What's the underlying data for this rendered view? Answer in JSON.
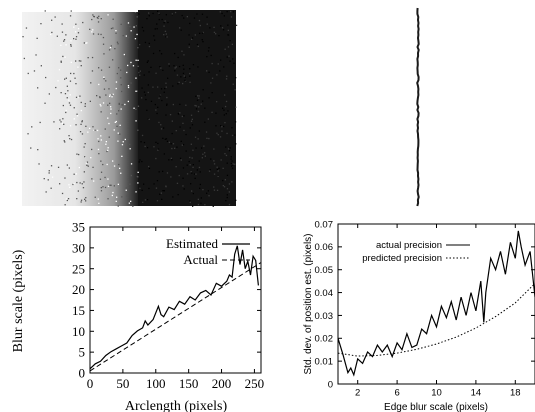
{
  "images": {
    "blur_ramp": {
      "dark_color": "#141414",
      "light_color": "#f2f2f2"
    },
    "edge_line": {
      "color": "#1a1a1a"
    }
  },
  "chart_data": [
    {
      "type": "line",
      "title": "",
      "xlabel": "Arclength (pixels)",
      "ylabel": "Blur scale (pixels)",
      "xlim": [
        0,
        260
      ],
      "ylim": [
        0,
        35
      ],
      "xticks": [
        "0",
        "50",
        "100",
        "150",
        "200",
        "250"
      ],
      "yticks": [
        "0",
        "5",
        "10",
        "15",
        "20",
        "25",
        "30",
        "35"
      ],
      "grid": false,
      "legend_position": "top-right",
      "series": [
        {
          "name": "Estimated",
          "style": "solid",
          "x": [
            0,
            8,
            16,
            24,
            32,
            40,
            48,
            56,
            64,
            72,
            80,
            84,
            88,
            96,
            104,
            108,
            112,
            120,
            128,
            136,
            144,
            152,
            160,
            168,
            176,
            184,
            192,
            200,
            208,
            212,
            216,
            220,
            224,
            228,
            232,
            236,
            240,
            244,
            248,
            252,
            256
          ],
          "values": [
            1.0,
            2.2,
            2.8,
            4.2,
            5.1,
            5.8,
            6.5,
            7.2,
            9.0,
            10.1,
            10.8,
            12.5,
            11.5,
            12.8,
            16.0,
            14.0,
            13.5,
            15.8,
            15.2,
            17.2,
            16.5,
            18.3,
            17.5,
            19.2,
            19.8,
            18.7,
            21.5,
            20.8,
            22.0,
            23.5,
            23.0,
            28.5,
            30.5,
            26.0,
            29.5,
            25.0,
            26.8,
            23.5,
            28.0,
            27.0,
            21.0
          ]
        },
        {
          "name": "Actual",
          "style": "dashed",
          "x": [
            0,
            260
          ],
          "values": [
            0.5,
            26.5
          ]
        }
      ]
    },
    {
      "type": "line",
      "title": "",
      "xlabel": "Edge blur scale (pixels)",
      "ylabel": "Std. dev. of position est. (pixels)",
      "xlim": [
        0,
        20
      ],
      "ylim": [
        0,
        0.07
      ],
      "xticks": [
        "2",
        "6",
        "10",
        "14",
        "18"
      ],
      "yticks": [
        "0",
        "0.01",
        "0.02",
        "0.03",
        "0.04",
        "0.05",
        "0.06",
        "0.07"
      ],
      "grid": false,
      "legend_position": "top-left",
      "series": [
        {
          "name": "actual precision",
          "style": "solid",
          "x": [
            0.0,
            0.5,
            1.0,
            1.3,
            1.6,
            2.0,
            2.5,
            3.0,
            3.5,
            4.0,
            4.5,
            5.0,
            5.5,
            6.0,
            6.5,
            7.0,
            7.5,
            8.0,
            8.5,
            9.0,
            9.5,
            10.0,
            10.5,
            11.0,
            11.5,
            12.0,
            12.5,
            13.0,
            13.5,
            14.0,
            14.5,
            14.8,
            15.0,
            15.5,
            16.0,
            16.5,
            17.0,
            17.5,
            18.0,
            18.3,
            18.6,
            19.0,
            19.5,
            20.0
          ],
          "values": [
            0.02,
            0.013,
            0.005,
            0.007,
            0.004,
            0.011,
            0.009,
            0.014,
            0.012,
            0.017,
            0.014,
            0.017,
            0.012,
            0.018,
            0.015,
            0.022,
            0.016,
            0.017,
            0.024,
            0.022,
            0.03,
            0.025,
            0.034,
            0.029,
            0.036,
            0.028,
            0.038,
            0.03,
            0.04,
            0.032,
            0.045,
            0.027,
            0.04,
            0.055,
            0.05,
            0.058,
            0.048,
            0.062,
            0.055,
            0.067,
            0.06,
            0.052,
            0.058,
            0.038
          ]
        },
        {
          "name": "predicted precision",
          "style": "dotted",
          "x": [
            0,
            2,
            4,
            6,
            8,
            10,
            12,
            14,
            16,
            18,
            20
          ],
          "values": [
            0.0135,
            0.0122,
            0.0125,
            0.0135,
            0.0152,
            0.0175,
            0.0205,
            0.0245,
            0.0295,
            0.0355,
            0.044
          ]
        }
      ]
    }
  ]
}
